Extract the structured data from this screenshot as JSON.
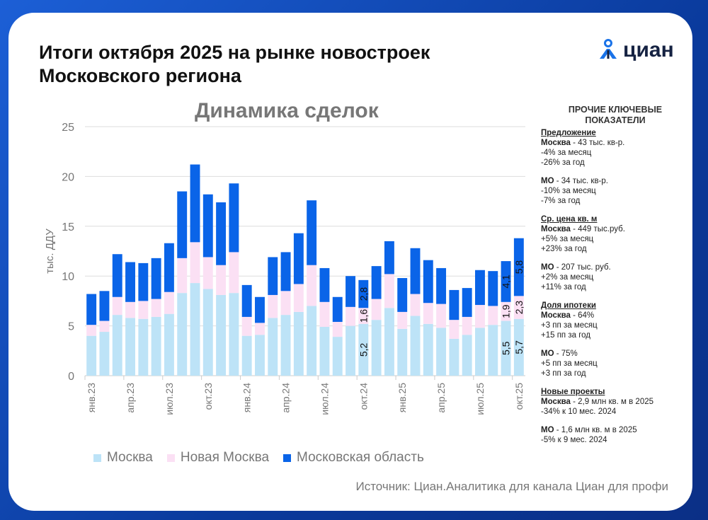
{
  "header": {
    "title_line1": "Итоги октября 2025 на рынке новостроек",
    "title_line2": "Московского региона",
    "logo_text": "циан",
    "logo_icon": "cian-pin-icon"
  },
  "colors": {
    "moscow": "#bde3f7",
    "new_moscow": "#fbe0f4",
    "mo": "#0a64e8",
    "brand": "#1a73e8"
  },
  "chart_data": {
    "type": "bar",
    "stacked": true,
    "title": "Динамика сделок",
    "ylabel": "тыс. ДДУ",
    "ylim": [
      0,
      25
    ],
    "yticks": [
      0,
      5,
      10,
      15,
      20,
      25
    ],
    "grid": true,
    "legend_position": "bottom",
    "categories": [
      "янв.23",
      "фев.23",
      "мар.23",
      "апр.23",
      "май.23",
      "июн.23",
      "июл.23",
      "авг.23",
      "сен.23",
      "окт.23",
      "ноя.23",
      "дек.23",
      "янв.24",
      "фев.24",
      "мар.24",
      "апр.24",
      "май.24",
      "июн.24",
      "июл.24",
      "авг.24",
      "сен.24",
      "окт.24",
      "ноя.24",
      "дек.24",
      "янв.25",
      "фев.25",
      "мар.25",
      "апр.25",
      "май.25",
      "июн.25",
      "июл.25",
      "авг.25",
      "сен.25",
      "окт.25"
    ],
    "tick_labels": [
      "янв.23",
      "апр.23",
      "июл.23",
      "окт.23",
      "янв.24",
      "апр.24",
      "июл.24",
      "окт.24",
      "янв.25",
      "апр.25",
      "июл.25",
      "окт.25"
    ],
    "series": [
      {
        "name": "Москва",
        "values": [
          4.0,
          4.4,
          6.1,
          5.8,
          5.7,
          5.9,
          6.2,
          8.3,
          9.3,
          8.7,
          8.1,
          8.3,
          4.0,
          4.1,
          5.8,
          6.1,
          6.4,
          7.0,
          4.9,
          3.9,
          5.0,
          5.2,
          5.6,
          6.8,
          4.7,
          6.0,
          5.2,
          4.8,
          3.7,
          4.1,
          4.8,
          5.1,
          5.5,
          5.7
        ]
      },
      {
        "name": "Новая Москва",
        "values": [
          1.1,
          1.1,
          1.8,
          1.6,
          1.8,
          1.8,
          2.2,
          3.5,
          4.1,
          3.2,
          3.0,
          4.1,
          1.9,
          1.2,
          2.3,
          2.4,
          2.8,
          4.1,
          2.5,
          1.5,
          1.9,
          1.6,
          2.1,
          3.4,
          1.7,
          2.2,
          2.1,
          2.4,
          1.9,
          1.8,
          2.3,
          1.9,
          1.9,
          2.3
        ]
      },
      {
        "name": "Московская область",
        "values": [
          3.1,
          3.0,
          4.3,
          4.0,
          3.8,
          4.1,
          4.9,
          6.7,
          7.8,
          6.3,
          6.3,
          6.9,
          3.2,
          2.6,
          3.8,
          3.9,
          5.1,
          6.5,
          3.4,
          2.5,
          3.1,
          2.8,
          3.3,
          3.3,
          3.4,
          4.6,
          4.3,
          3.6,
          3.0,
          2.9,
          3.5,
          3.5,
          4.1,
          5.8
        ]
      }
    ],
    "data_labels": [
      {
        "category": "окт.24",
        "values": [
          "5,2",
          "1,6",
          "2,8"
        ]
      },
      {
        "category": "сен.25",
        "values": [
          "5,5",
          "1,9",
          "4,1"
        ]
      },
      {
        "category": "окт.25",
        "values": [
          "5,7",
          "2,3",
          "5,8"
        ]
      }
    ]
  },
  "side": {
    "heading1": "ПРОЧИЕ КЛЮЧЕВЫЕ",
    "heading2": "ПОКАЗАТЕЛИ",
    "sections": [
      {
        "title": "Предложение",
        "blocks": [
          {
            "region": "Москва",
            "value": " - 43 тыс. кв-р.",
            "lines": [
              "-4% за месяц",
              "-26% за год"
            ]
          },
          {
            "region": "МО",
            "value": " - 34 тыс. кв-р.",
            "lines": [
              "-10% за месяц",
              "-7% за год"
            ]
          }
        ]
      },
      {
        "title": "Ср. цена кв. м",
        "blocks": [
          {
            "region": "Москва",
            "value": " - 449 тыс.руб.",
            "lines": [
              "+5% за месяц",
              "+23% за год"
            ]
          },
          {
            "region": "МО",
            "value": " - 207 тыс. руб.",
            "lines": [
              "+2% за месяц",
              "+11% за год"
            ]
          }
        ]
      },
      {
        "title": "Доля ипотеки",
        "blocks": [
          {
            "region": "Москва",
            "value": " - 64%",
            "lines": [
              "+3 пп за месяц",
              "+15 пп за год"
            ]
          },
          {
            "region": "МО",
            "value": " - 75%",
            "lines": [
              "+5 пп за месяц",
              "+3 пп за год"
            ]
          }
        ]
      },
      {
        "title": "Новые проекты",
        "blocks": [
          {
            "region": "Москва",
            "value": " - 2,9 млн кв. м в 2025",
            "lines": [
              "-34% к 10 мес. 2024"
            ]
          },
          {
            "region": "МО",
            "value": " - 1,6 млн кв. м в 2025",
            "lines": [
              "-5% к 9 мес. 2024"
            ]
          }
        ]
      }
    ]
  },
  "source": "Источник: Циан.Аналитика для канала Циан для профи"
}
